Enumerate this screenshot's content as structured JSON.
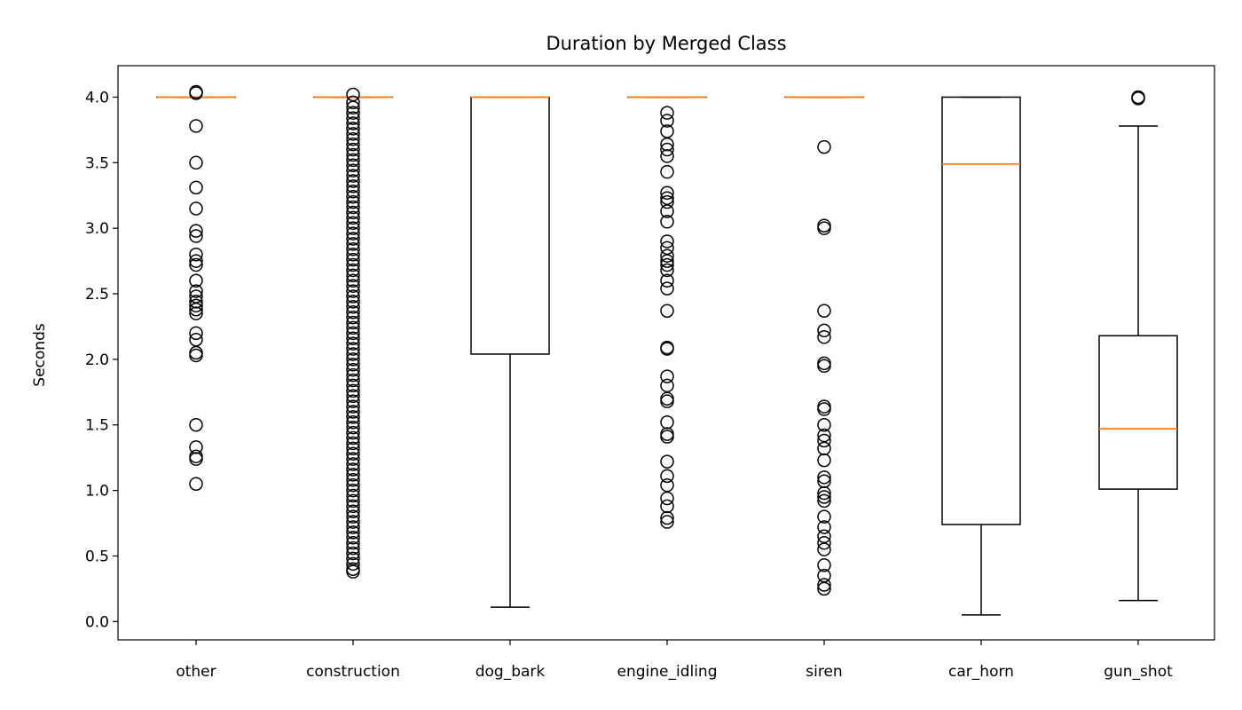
{
  "chart_data": {
    "type": "boxplot",
    "title": "Duration by Merged Class",
    "xlabel": "",
    "ylabel": "Seconds",
    "ylim": [
      -0.14,
      4.24
    ],
    "yticks": [
      "0.0",
      "0.5",
      "1.0",
      "1.5",
      "2.0",
      "2.5",
      "3.0",
      "3.5",
      "4.0"
    ],
    "grid": false,
    "colors": {
      "box": "#000000",
      "median": "#ff7f0e",
      "flier": "#000000"
    },
    "categories": [
      "other",
      "construction",
      "dog_bark",
      "engine_idling",
      "siren",
      "car_horn",
      "gun_shot"
    ],
    "boxes": [
      {
        "name": "other",
        "whisker_low": 4.0,
        "q1": 4.0,
        "median": 4.0,
        "q3": 4.0,
        "whisker_high": 4.0,
        "outliers": [
          4.03,
          4.04,
          3.78,
          3.5,
          3.31,
          3.15,
          2.98,
          2.94,
          2.8,
          2.75,
          2.72,
          2.6,
          2.52,
          2.48,
          2.44,
          2.41,
          2.38,
          2.35,
          2.2,
          2.15,
          2.05,
          2.03,
          1.5,
          1.33,
          1.26,
          1.24,
          1.05
        ]
      },
      {
        "name": "construction",
        "whisker_low": 4.0,
        "q1": 4.0,
        "median": 4.0,
        "q3": 4.0,
        "whisker_high": 4.0,
        "outliers": [
          4.02,
          3.96,
          3.92,
          3.88,
          3.84,
          3.8,
          3.76,
          3.72,
          3.68,
          3.64,
          3.6,
          3.56,
          3.52,
          3.48,
          3.44,
          3.4,
          3.36,
          3.32,
          3.28,
          3.24,
          3.2,
          3.16,
          3.12,
          3.08,
          3.04,
          3.0,
          2.96,
          2.92,
          2.88,
          2.84,
          2.8,
          2.76,
          2.72,
          2.68,
          2.64,
          2.6,
          2.56,
          2.52,
          2.48,
          2.44,
          2.4,
          2.36,
          2.32,
          2.28,
          2.24,
          2.2,
          2.16,
          2.12,
          2.08,
          2.04,
          2.0,
          1.96,
          1.92,
          1.88,
          1.84,
          1.8,
          1.76,
          1.72,
          1.68,
          1.64,
          1.6,
          1.56,
          1.52,
          1.48,
          1.44,
          1.4,
          1.36,
          1.32,
          1.28,
          1.24,
          1.2,
          1.16,
          1.12,
          1.08,
          1.04,
          1.0,
          0.96,
          0.92,
          0.88,
          0.84,
          0.8,
          0.76,
          0.72,
          0.68,
          0.64,
          0.6,
          0.56,
          0.52,
          0.48,
          0.44,
          0.4,
          0.38
        ]
      },
      {
        "name": "dog_bark",
        "whisker_low": 0.11,
        "q1": 2.04,
        "median": 4.0,
        "q3": 4.0,
        "whisker_high": 4.0,
        "outliers": []
      },
      {
        "name": "engine_idling",
        "whisker_low": 4.0,
        "q1": 4.0,
        "median": 4.0,
        "q3": 4.0,
        "whisker_high": 4.0,
        "outliers": [
          3.88,
          3.82,
          3.74,
          3.64,
          3.6,
          3.55,
          3.43,
          3.27,
          3.23,
          3.2,
          3.13,
          3.05,
          2.9,
          2.85,
          2.79,
          2.75,
          2.72,
          2.68,
          2.6,
          2.54,
          2.37,
          2.09,
          2.08,
          1.87,
          1.8,
          1.7,
          1.68,
          1.52,
          1.43,
          1.41,
          1.22,
          1.11,
          1.04,
          0.94,
          0.88,
          0.79,
          0.76
        ]
      },
      {
        "name": "siren",
        "whisker_low": 4.0,
        "q1": 4.0,
        "median": 4.0,
        "q3": 4.0,
        "whisker_high": 4.0,
        "outliers": [
          3.62,
          3.02,
          3.0,
          2.37,
          2.22,
          2.17,
          1.97,
          1.95,
          1.64,
          1.62,
          1.5,
          1.42,
          1.38,
          1.32,
          1.23,
          1.1,
          1.07,
          0.98,
          0.95,
          0.92,
          0.8,
          0.72,
          0.65,
          0.6,
          0.55,
          0.43,
          0.35,
          0.28,
          0.25
        ]
      },
      {
        "name": "car_horn",
        "whisker_low": 0.05,
        "q1": 0.74,
        "median": 3.49,
        "q3": 4.0,
        "whisker_high": 4.0,
        "outliers": []
      },
      {
        "name": "gun_shot",
        "whisker_low": 0.16,
        "q1": 1.01,
        "median": 1.47,
        "q3": 2.18,
        "whisker_high": 3.78,
        "outliers": [
          4.0,
          3.99
        ]
      }
    ]
  }
}
